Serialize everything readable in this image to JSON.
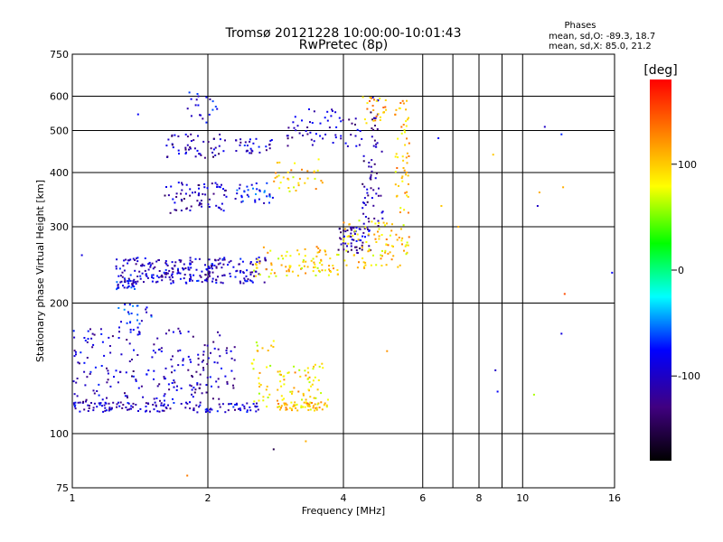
{
  "chart_data": {
    "type": "scatter",
    "title": "Tromsø 20121228 10:00:00-10:01:43",
    "subtitle": "RwPretec (8p)",
    "xlabel": "Frequency [MHz]",
    "ylabel": "Stationary phase Virtual Height [km]",
    "x_scale": "log",
    "y_scale": "log",
    "xlim": [
      1,
      16
    ],
    "ylim": [
      75,
      750
    ],
    "x_ticks": [
      1,
      2,
      4,
      6,
      8,
      10,
      16
    ],
    "x_minor": [
      7,
      9
    ],
    "y_ticks": [
      75,
      100,
      200,
      300,
      400,
      500,
      600,
      750
    ],
    "grid": true,
    "stats": {
      "heading": "Phases",
      "line_o": "mean, sd,O: -89.3, 18.7",
      "line_x": "mean, sd,X:  85.0, 21.2"
    },
    "colorbar": {
      "label": "[deg]",
      "range": [
        -180,
        180
      ],
      "ticks": [
        100,
        0,
        -100
      ],
      "colors": [
        "#ff0000",
        "#ff8000",
        "#ffff00",
        "#00ff00",
        "#00ffff",
        "#0000ff",
        "#400080",
        "#000000"
      ]
    },
    "point_clusters": [
      {
        "fmin": 1.0,
        "fmax": 2.6,
        "hmin": 112,
        "hmax": 118,
        "phase": -100,
        "n": 140
      },
      {
        "fmin": 1.0,
        "fmax": 2.3,
        "hmin": 118,
        "hmax": 175,
        "phase": -105,
        "n": 220
      },
      {
        "fmin": 1.2,
        "fmax": 1.5,
        "hmin": 175,
        "hmax": 200,
        "phase": -80,
        "n": 25
      },
      {
        "fmin": 2.5,
        "fmax": 2.8,
        "hmin": 115,
        "hmax": 165,
        "phase": 90,
        "n": 30
      },
      {
        "fmin": 2.85,
        "fmax": 3.7,
        "hmin": 113,
        "hmax": 118,
        "phase": 100,
        "n": 60
      },
      {
        "fmin": 2.85,
        "fmax": 3.7,
        "hmin": 118,
        "hmax": 145,
        "phase": 95,
        "n": 60
      },
      {
        "fmin": 1.25,
        "fmax": 1.4,
        "hmin": 215,
        "hmax": 225,
        "phase": -90,
        "n": 25
      },
      {
        "fmin": 1.25,
        "fmax": 2.7,
        "hmin": 222,
        "hmax": 255,
        "phase": -100,
        "n": 260
      },
      {
        "fmin": 2.5,
        "fmax": 3.9,
        "hmin": 230,
        "hmax": 270,
        "phase": 95,
        "n": 90
      },
      {
        "fmin": 3.9,
        "fmax": 4.6,
        "hmin": 260,
        "hmax": 300,
        "phase": -110,
        "n": 60
      },
      {
        "fmin": 4.0,
        "fmax": 5.6,
        "hmin": 240,
        "hmax": 310,
        "phase": 100,
        "n": 90
      },
      {
        "fmin": 4.4,
        "fmax": 4.9,
        "hmin": 300,
        "hmax": 450,
        "phase": -115,
        "n": 45
      },
      {
        "fmin": 5.2,
        "fmax": 5.6,
        "hmin": 320,
        "hmax": 600,
        "phase": 105,
        "n": 55
      },
      {
        "fmin": 4.6,
        "fmax": 4.8,
        "hmin": 450,
        "hmax": 600,
        "phase": -120,
        "n": 20
      },
      {
        "fmin": 3.0,
        "fmax": 4.4,
        "hmin": 460,
        "hmax": 560,
        "phase": -105,
        "n": 60
      },
      {
        "fmin": 4.4,
        "fmax": 5.0,
        "hmin": 520,
        "hmax": 600,
        "phase": 110,
        "n": 25
      },
      {
        "fmin": 1.6,
        "fmax": 2.2,
        "hmin": 320,
        "hmax": 380,
        "phase": -110,
        "n": 70
      },
      {
        "fmin": 2.3,
        "fmax": 2.8,
        "hmin": 340,
        "hmax": 380,
        "phase": -80,
        "n": 35
      },
      {
        "fmin": 2.8,
        "fmax": 3.6,
        "hmin": 360,
        "hmax": 430,
        "phase": 100,
        "n": 35
      },
      {
        "fmin": 1.6,
        "fmax": 2.2,
        "hmin": 430,
        "hmax": 490,
        "phase": -110,
        "n": 50
      },
      {
        "fmin": 2.3,
        "fmax": 2.8,
        "hmin": 440,
        "hmax": 480,
        "phase": -100,
        "n": 30
      },
      {
        "fmin": 1.8,
        "fmax": 2.1,
        "hmin": 520,
        "hmax": 620,
        "phase": -90,
        "n": 20
      }
    ],
    "isolated_points": [
      {
        "f": 1.05,
        "h": 258,
        "phase": -90
      },
      {
        "f": 1.4,
        "h": 545,
        "phase": -80
      },
      {
        "f": 2.8,
        "h": 92,
        "phase": -150
      },
      {
        "f": 3.3,
        "h": 96,
        "phase": 110
      },
      {
        "f": 1.8,
        "h": 80,
        "phase": 130
      },
      {
        "f": 6.6,
        "h": 335,
        "phase": 100
      },
      {
        "f": 6.5,
        "h": 480,
        "phase": -80
      },
      {
        "f": 7.2,
        "h": 300,
        "phase": 110
      },
      {
        "f": 8.6,
        "h": 440,
        "phase": 100
      },
      {
        "f": 10.8,
        "h": 335,
        "phase": -100
      },
      {
        "f": 10.9,
        "h": 360,
        "phase": 110
      },
      {
        "f": 12.2,
        "h": 490,
        "phase": -70
      },
      {
        "f": 12.3,
        "h": 370,
        "phase": 110
      },
      {
        "f": 12.4,
        "h": 210,
        "phase": 150
      },
      {
        "f": 12.2,
        "h": 170,
        "phase": -90
      },
      {
        "f": 8.7,
        "h": 140,
        "phase": -100
      },
      {
        "f": 8.8,
        "h": 125,
        "phase": -80
      },
      {
        "f": 10.6,
        "h": 123,
        "phase": 60
      },
      {
        "f": 15.8,
        "h": 235,
        "phase": -80
      },
      {
        "f": 11.2,
        "h": 510,
        "phase": -100
      },
      {
        "f": 5.0,
        "h": 155,
        "phase": 120
      },
      {
        "f": 4.5,
        "h": 520,
        "phase": 90
      }
    ]
  }
}
